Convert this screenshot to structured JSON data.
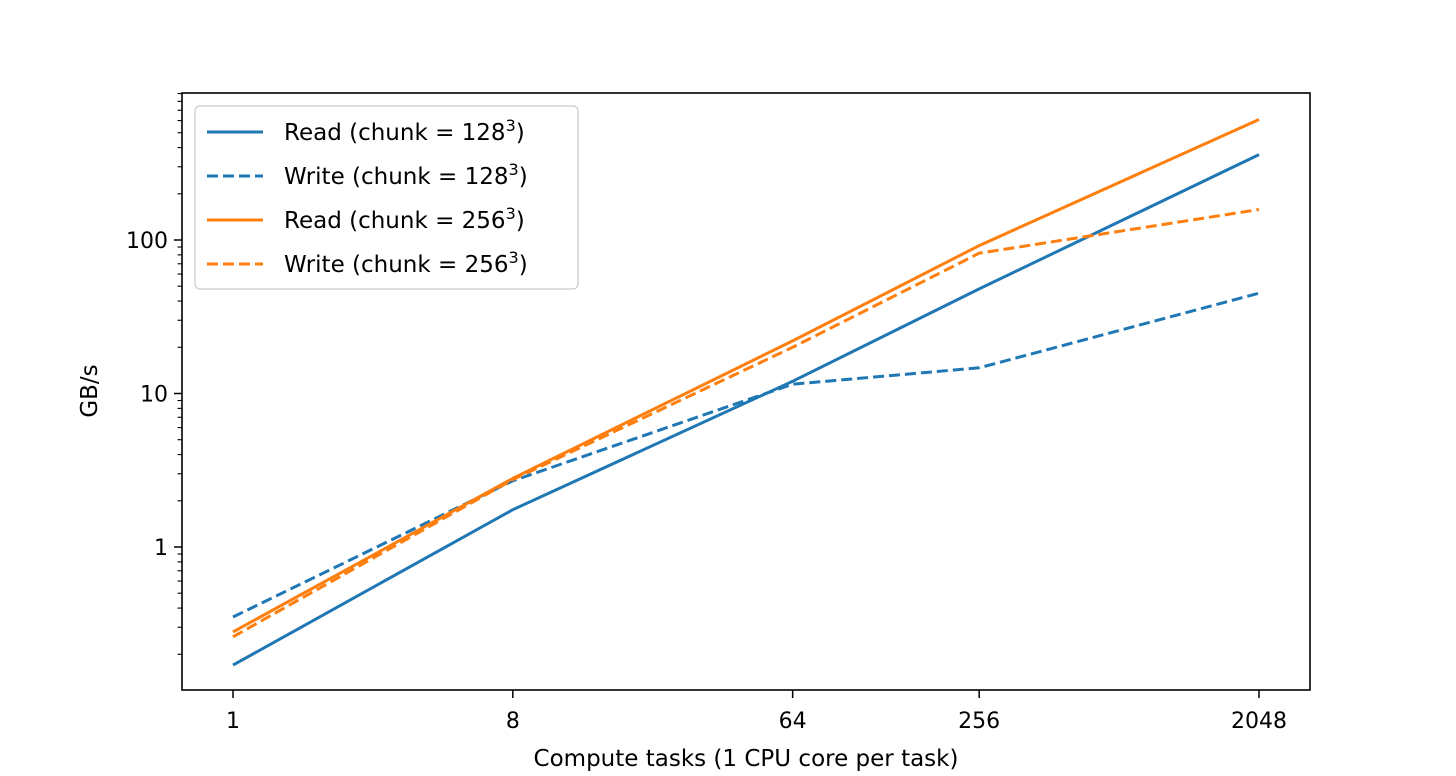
{
  "chart_data": {
    "type": "line",
    "title": "",
    "xlabel": "Compute tasks (1 CPU core per task)",
    "ylabel": "GB/s",
    "xscale": "log",
    "yscale": "log",
    "x": [
      1,
      8,
      64,
      256,
      2048
    ],
    "xticks": [
      "1",
      "8",
      "64",
      "256",
      "2048"
    ],
    "yticks": [
      "1",
      "10",
      "100"
    ],
    "legend_position": "top-left",
    "grid": false,
    "series": [
      {
        "name": "Read (chunk = 128",
        "sup": "3",
        "name_end": ")",
        "color": "#1f77b4",
        "style": "solid",
        "values": [
          0.17,
          1.75,
          12,
          48,
          360
        ]
      },
      {
        "name": "Write (chunk = 128",
        "sup": "3",
        "name_end": ")",
        "color": "#1f77b4",
        "style": "dashed",
        "values": [
          0.35,
          2.7,
          11.5,
          14.7,
          45
        ]
      },
      {
        "name": "Read (chunk = 256",
        "sup": "3",
        "name_end": ")",
        "color": "#ff7f0e",
        "style": "solid",
        "values": [
          0.28,
          2.8,
          22,
          92,
          610
        ]
      },
      {
        "name": "Write (chunk = 256",
        "sup": "3",
        "name_end": ")",
        "color": "#ff7f0e",
        "style": "dashed",
        "values": [
          0.26,
          2.75,
          20,
          82,
          158
        ]
      }
    ]
  }
}
